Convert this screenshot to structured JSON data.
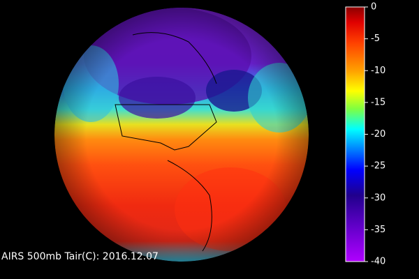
{
  "title": "AIRS 500mb Tair(C): 2016.12.07",
  "colorbar": {
    "lim": [
      -40,
      0
    ],
    "ticks": [
      0,
      -5,
      -10,
      -15,
      -20,
      -25,
      -30,
      -35,
      -40
    ]
  }
}
